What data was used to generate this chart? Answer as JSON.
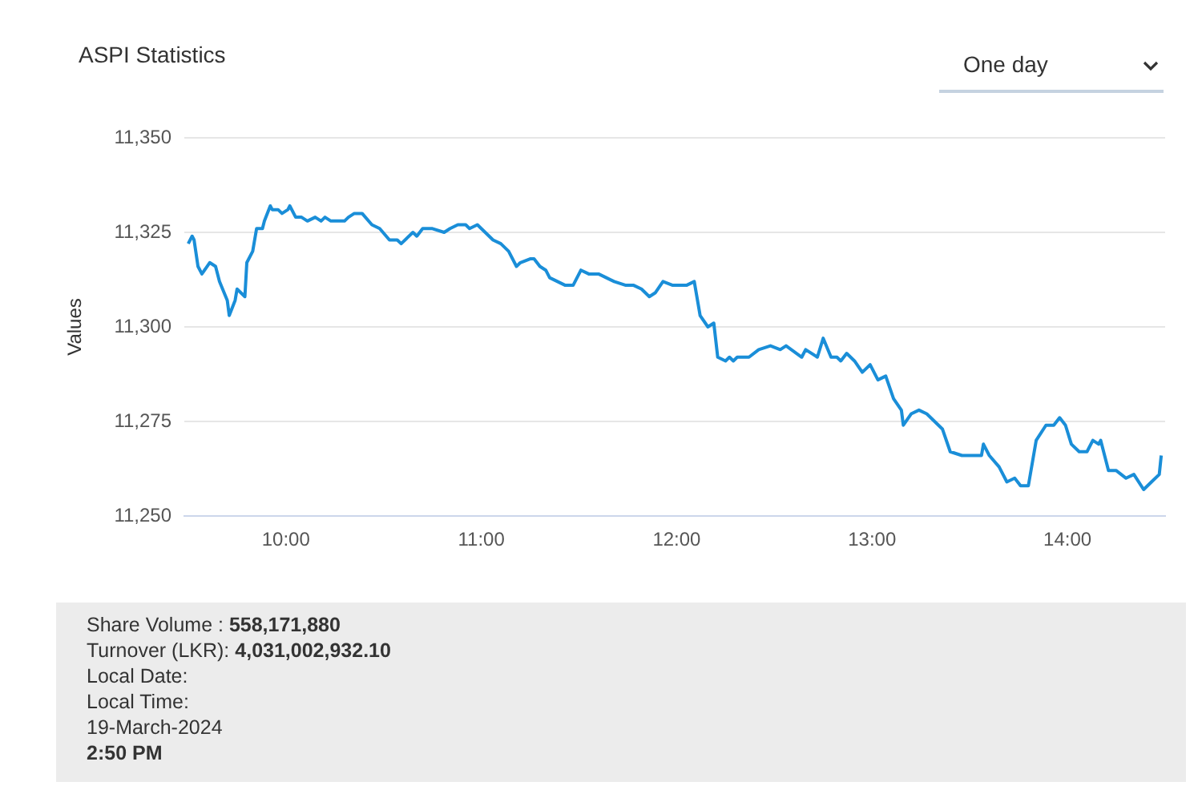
{
  "chart_data": {
    "type": "line",
    "title": "ASPI Statistics",
    "ylabel": "Values",
    "x": [
      9.5,
      9.52,
      9.53,
      9.55,
      9.57,
      9.61,
      9.64,
      9.66,
      9.7,
      9.71,
      9.74,
      9.75,
      9.79,
      9.8,
      9.83,
      9.85,
      9.88,
      9.89,
      9.92,
      9.93,
      9.96,
      9.98,
      10.01,
      10.02,
      10.05,
      10.08,
      10.11,
      10.15,
      10.18,
      10.2,
      10.23,
      10.26,
      10.3,
      10.32,
      10.35,
      10.39,
      10.44,
      10.48,
      10.53,
      10.57,
      10.59,
      10.65,
      10.67,
      10.7,
      10.75,
      10.81,
      10.84,
      10.88,
      10.92,
      10.94,
      10.98,
      11.02,
      11.06,
      11.1,
      11.14,
      11.18,
      11.2,
      11.25,
      11.27,
      11.3,
      11.33,
      11.35,
      11.39,
      11.43,
      11.47,
      11.51,
      11.55,
      11.6,
      11.64,
      11.68,
      11.74,
      11.78,
      11.82,
      11.86,
      11.89,
      11.93,
      11.98,
      12.05,
      12.09,
      12.12,
      12.16,
      12.19,
      12.21,
      12.25,
      12.27,
      12.29,
      12.31,
      12.37,
      12.42,
      12.48,
      12.53,
      12.56,
      12.64,
      12.66,
      12.72,
      12.75,
      12.79,
      12.82,
      12.84,
      12.87,
      12.91,
      12.95,
      12.99,
      13.03,
      13.07,
      13.11,
      13.15,
      13.16,
      13.2,
      13.24,
      13.28,
      13.32,
      13.36,
      13.4,
      13.46,
      13.52,
      13.56,
      13.57,
      13.6,
      13.65,
      13.69,
      13.73,
      13.76,
      13.8,
      13.84,
      13.89,
      13.93,
      13.96,
      13.99,
      14.02,
      14.06,
      14.1,
      14.13,
      14.16,
      14.17,
      14.21,
      14.25,
      14.3,
      14.34,
      14.39,
      14.43,
      14.47,
      14.48
    ],
    "series": [
      {
        "color": "#1a8ed8",
        "values": [
          11322,
          11324,
          11323,
          11316,
          11314,
          11317,
          11316,
          11312,
          11307,
          11303,
          11307,
          11310,
          11308,
          11317,
          11320,
          11326,
          11326,
          11328,
          11332,
          11331,
          11331,
          11330,
          11331,
          11332,
          11329,
          11329,
          11328,
          11329,
          11328,
          11329,
          11328,
          11328,
          11328,
          11329,
          11330,
          11330,
          11327,
          11326,
          11323,
          11323,
          11322,
          11325,
          11324,
          11326,
          11326,
          11325,
          11326,
          11327,
          11327,
          11326,
          11327,
          11325,
          11323,
          11322,
          11320,
          11316,
          11317,
          11318,
          11318,
          11316,
          11315,
          11313,
          11312,
          11311,
          11311,
          11315,
          11314,
          11314,
          11313,
          11312,
          11311,
          11311,
          11310,
          11308,
          11309,
          11312,
          11311,
          11311,
          11312,
          11303,
          11300,
          11301,
          11292,
          11291,
          11292,
          11291,
          11292,
          11292,
          11294,
          11295,
          11294,
          11295,
          11292,
          11294,
          11292,
          11297,
          11292,
          11292,
          11291,
          11293,
          11291,
          11288,
          11290,
          11286,
          11287,
          11281,
          11278,
          11274,
          11277,
          11278,
          11277,
          11275,
          11273,
          11267,
          11266,
          11266,
          11266,
          11269,
          11266,
          11263,
          11259,
          11260,
          11258,
          11258,
          11270,
          11274,
          11274,
          11276,
          11274,
          11269,
          11267,
          11267,
          11270,
          11269,
          11270,
          11262,
          11262,
          11260,
          11261,
          11257,
          11259,
          11261,
          11266
        ]
      }
    ],
    "xlim": [
      9.48,
      14.5
    ],
    "xticks": [
      {
        "value": 10,
        "label": "10:00"
      },
      {
        "value": 11,
        "label": "11:00"
      },
      {
        "value": 12,
        "label": "12:00"
      },
      {
        "value": 13,
        "label": "13:00"
      },
      {
        "value": 14,
        "label": "14:00"
      }
    ],
    "ylim": [
      11250,
      11350
    ],
    "yticks": [
      {
        "value": 11250,
        "label": "11,250"
      },
      {
        "value": 11275,
        "label": "11,275"
      },
      {
        "value": 11300,
        "label": "11,300"
      },
      {
        "value": 11325,
        "label": "11,325"
      },
      {
        "value": 11350,
        "label": "11,350"
      }
    ],
    "grid": "y",
    "legend": false,
    "marker": "none",
    "line_style": "solid",
    "annotations": [
      "One day",
      "Share Volume :",
      "558,171,880",
      "Turnover (LKR):",
      "4,031,002,932.10",
      "Local Date:",
      "Local Time:",
      "19-March-2024",
      "2:50 PM"
    ]
  }
}
